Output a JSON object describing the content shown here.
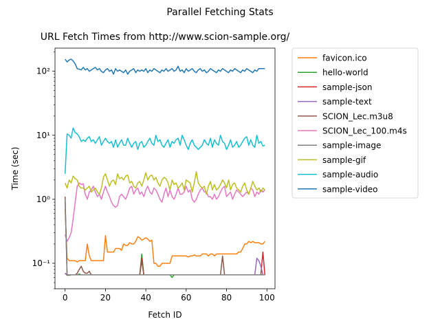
{
  "suptitle": "Parallel Fetching Stats",
  "chart_data": {
    "type": "line",
    "title": "URL Fetch Times from http://www.scion-sample.org/",
    "xlabel": "Fetch ID",
    "ylabel": "Time (sec)",
    "yscale": "log",
    "xlim": [
      -5,
      104
    ],
    "ylim": [
      0.04,
      230
    ],
    "xticks": [
      0,
      20,
      40,
      60,
      80,
      100
    ],
    "xtick_labels": [
      "0",
      "20",
      "40",
      "60",
      "80",
      "100"
    ],
    "yticks": [
      0.1,
      1,
      10,
      100
    ],
    "ytick_labels": [
      "10⁻¹",
      "10⁰",
      "10¹",
      "10²"
    ],
    "grid": false,
    "legend_position": "outside-right",
    "x": [
      0,
      1,
      2,
      3,
      4,
      5,
      6,
      7,
      8,
      9,
      10,
      11,
      12,
      13,
      14,
      15,
      16,
      17,
      18,
      19,
      20,
      21,
      22,
      23,
      24,
      25,
      26,
      27,
      28,
      29,
      30,
      31,
      32,
      33,
      34,
      35,
      36,
      37,
      38,
      39,
      40,
      41,
      42,
      43,
      44,
      45,
      46,
      47,
      48,
      49,
      50,
      51,
      52,
      53,
      54,
      55,
      56,
      57,
      58,
      59,
      60,
      61,
      62,
      63,
      64,
      65,
      66,
      67,
      68,
      69,
      70,
      71,
      72,
      73,
      74,
      75,
      76,
      77,
      78,
      79,
      80,
      81,
      82,
      83,
      84,
      85,
      86,
      87,
      88,
      89,
      90,
      91,
      92,
      93,
      94,
      95,
      96,
      97,
      98,
      99
    ],
    "series": [
      {
        "name": "favicon.ico",
        "color": "#ff7f0e",
        "values": [
          0.7,
          0.12,
          0.11,
          0.11,
          0.11,
          0.11,
          0.105,
          0.11,
          0.11,
          0.11,
          0.11,
          0.2,
          0.13,
          0.11,
          0.11,
          0.11,
          0.11,
          0.11,
          0.11,
          0.11,
          0.27,
          0.15,
          0.15,
          0.15,
          0.15,
          0.17,
          0.17,
          0.17,
          0.16,
          0.2,
          0.19,
          0.19,
          0.21,
          0.2,
          0.2,
          0.22,
          0.26,
          0.25,
          0.23,
          0.24,
          0.25,
          0.24,
          0.22,
          0.23,
          0.1,
          0.1,
          0.09,
          0.09,
          0.1,
          0.1,
          0.1,
          0.1,
          0.1,
          0.13,
          0.13,
          0.13,
          0.13,
          0.13,
          0.13,
          0.13,
          0.13,
          0.125,
          0.13,
          0.13,
          0.135,
          0.13,
          0.13,
          0.13,
          0.14,
          0.14,
          0.14,
          0.13,
          0.14,
          0.14,
          0.13,
          0.14,
          0.14,
          0.14,
          0.14,
          0.14,
          0.14,
          0.14,
          0.14,
          0.14,
          0.14,
          0.14,
          0.15,
          0.15,
          0.17,
          0.2,
          0.2,
          0.22,
          0.21,
          0.22,
          0.21,
          0.21,
          0.21,
          0.2,
          0.2,
          0.22
        ]
      },
      {
        "name": "hello-world",
        "color": "#2ca02c",
        "values": [
          0.07,
          0.065,
          0.065,
          0.066,
          0.066,
          0.066,
          0.066,
          0.068,
          0.066,
          0.066,
          0.066,
          0.066,
          0.066,
          0.066,
          0.066,
          0.066,
          0.066,
          0.066,
          0.066,
          0.066,
          0.066,
          0.066,
          0.066,
          0.066,
          0.066,
          0.066,
          0.066,
          0.066,
          0.066,
          0.066,
          0.066,
          0.066,
          0.066,
          0.066,
          0.066,
          0.066,
          0.066,
          0.066,
          0.14,
          0.066,
          0.066,
          0.066,
          0.066,
          0.066,
          0.066,
          0.066,
          0.066,
          0.066,
          0.066,
          0.066,
          0.066,
          0.066,
          0.066,
          0.06,
          0.066,
          0.066,
          0.066,
          0.066,
          0.066,
          0.066,
          0.066,
          0.066,
          0.066,
          0.066,
          0.066,
          0.066,
          0.066,
          0.066,
          0.066,
          0.066,
          0.066,
          0.066,
          0.066,
          0.066,
          0.066,
          0.066,
          0.066,
          0.066,
          0.066,
          0.066,
          0.066,
          0.066,
          0.066,
          0.066,
          0.066,
          0.066,
          0.066,
          0.066,
          0.066,
          0.066,
          0.066,
          0.066,
          0.066,
          0.066,
          0.066,
          0.066,
          0.066,
          0.066,
          0.066,
          0.066
        ]
      },
      {
        "name": "sample-json",
        "color": "#d62728",
        "values": [
          0.07,
          0.065,
          0.066,
          0.066,
          0.066,
          0.066,
          0.066,
          0.066,
          0.066,
          0.066,
          0.066,
          0.066,
          0.066,
          0.066,
          0.066,
          0.066,
          0.066,
          0.066,
          0.066,
          0.066,
          0.066,
          0.066,
          0.066,
          0.066,
          0.066,
          0.066,
          0.066,
          0.066,
          0.066,
          0.066,
          0.066,
          0.066,
          0.066,
          0.066,
          0.066,
          0.066,
          0.066,
          0.066,
          0.12,
          0.066,
          0.066,
          0.066,
          0.066,
          0.066,
          0.066,
          0.066,
          0.066,
          0.066,
          0.066,
          0.066,
          0.066,
          0.066,
          0.066,
          0.066,
          0.066,
          0.066,
          0.066,
          0.066,
          0.066,
          0.066,
          0.066,
          0.066,
          0.066,
          0.066,
          0.066,
          0.066,
          0.066,
          0.066,
          0.066,
          0.066,
          0.066,
          0.066,
          0.066,
          0.066,
          0.066,
          0.066,
          0.066,
          0.066,
          0.066,
          0.066,
          0.066,
          0.066,
          0.066,
          0.066,
          0.066,
          0.066,
          0.066,
          0.066,
          0.066,
          0.066,
          0.066,
          0.066,
          0.066,
          0.066,
          0.066,
          0.066,
          0.066,
          0.066,
          0.15,
          0.066
        ]
      },
      {
        "name": "sample-text",
        "color": "#9467bd",
        "values": [
          0.07,
          0.065,
          0.066,
          0.066,
          0.066,
          0.066,
          0.066,
          0.066,
          0.066,
          0.066,
          0.066,
          0.066,
          0.066,
          0.066,
          0.066,
          0.066,
          0.066,
          0.066,
          0.066,
          0.066,
          0.066,
          0.066,
          0.066,
          0.066,
          0.066,
          0.066,
          0.066,
          0.066,
          0.066,
          0.066,
          0.066,
          0.066,
          0.066,
          0.066,
          0.066,
          0.066,
          0.066,
          0.066,
          0.066,
          0.066,
          0.066,
          0.066,
          0.066,
          0.066,
          0.066,
          0.066,
          0.066,
          0.066,
          0.066,
          0.066,
          0.066,
          0.066,
          0.066,
          0.066,
          0.066,
          0.066,
          0.066,
          0.066,
          0.066,
          0.066,
          0.066,
          0.066,
          0.066,
          0.066,
          0.066,
          0.066,
          0.066,
          0.066,
          0.066,
          0.066,
          0.066,
          0.066,
          0.066,
          0.066,
          0.066,
          0.066,
          0.066,
          0.066,
          0.066,
          0.066,
          0.066,
          0.066,
          0.066,
          0.066,
          0.066,
          0.066,
          0.066,
          0.066,
          0.066,
          0.066,
          0.066,
          0.066,
          0.066,
          0.066,
          0.066,
          0.12,
          0.11,
          0.09,
          0.066,
          0.066
        ]
      },
      {
        "name": "SCION_Lec.m3u8",
        "color": "#8c564b",
        "values": [
          1.1,
          0.065,
          0.066,
          0.066,
          0.066,
          0.066,
          0.07,
          0.08,
          0.09,
          0.075,
          0.07,
          0.07,
          0.075,
          0.066,
          0.066,
          0.066,
          0.066,
          0.066,
          0.066,
          0.066,
          0.066,
          0.066,
          0.066,
          0.066,
          0.066,
          0.066,
          0.066,
          0.066,
          0.066,
          0.066,
          0.066,
          0.066,
          0.066,
          0.066,
          0.066,
          0.066,
          0.066,
          0.066,
          0.11,
          0.066,
          0.066,
          0.066,
          0.066,
          0.066,
          0.066,
          0.066,
          0.066,
          0.066,
          0.066,
          0.066,
          0.066,
          0.066,
          0.066,
          0.066,
          0.066,
          0.066,
          0.066,
          0.066,
          0.066,
          0.066,
          0.066,
          0.066,
          0.066,
          0.066,
          0.066,
          0.066,
          0.066,
          0.066,
          0.066,
          0.066,
          0.066,
          0.066,
          0.066,
          0.066,
          0.066,
          0.066,
          0.066,
          0.066,
          0.13,
          0.066,
          0.066,
          0.066,
          0.066,
          0.066,
          0.066,
          0.066,
          0.066,
          0.066,
          0.066,
          0.066,
          0.066,
          0.066,
          0.066,
          0.066,
          0.066,
          0.066,
          0.066,
          0.066,
          0.066,
          0.066
        ]
      },
      {
        "name": "SCION_Lec_100.m4s",
        "color": "#e377c2",
        "values": [
          0.28,
          0.22,
          0.25,
          0.3,
          0.5,
          0.9,
          1.6,
          1.8,
          1.7,
          1.75,
          1.2,
          1.0,
          1.3,
          1.4,
          1.6,
          1.3,
          1.1,
          1.2,
          1.0,
          1.3,
          1.6,
          1.3,
          1.1,
          0.9,
          0.8,
          0.75,
          0.8,
          1.1,
          1.2,
          1.1,
          1.0,
          1.2,
          1.5,
          1.6,
          1.2,
          1.4,
          1.5,
          1.2,
          1.3,
          1.1,
          1.4,
          1.6,
          1.3,
          1.2,
          1.5,
          1.4,
          1.2,
          1.0,
          0.9,
          1.2,
          1.5,
          1.1,
          1.4,
          1.1,
          1.0,
          1.2,
          1.5,
          1.2,
          1.2,
          1.3,
          1.6,
          1.3,
          1.4,
          1.0,
          0.9,
          1.0,
          1.2,
          1.4,
          1.5,
          1.3,
          1.3,
          1.1,
          1.1,
          1.0,
          1.2,
          1.0,
          1.1,
          1.3,
          1.5,
          1.6,
          1.1,
          1.2,
          1.3,
          1.0,
          1.2,
          1.4,
          1.3,
          1.2,
          1.1,
          1.2,
          1.3,
          1.2,
          1.5,
          1.4,
          1.1,
          1.3,
          1.2,
          1.4,
          1.3,
          1.4
        ]
      },
      {
        "name": "sample-image",
        "color": "#7f7f7f",
        "values": [
          1.0,
          0.065,
          0.066,
          0.066,
          0.066,
          0.066,
          0.066,
          0.066,
          0.066,
          0.066,
          0.066,
          0.066,
          0.066,
          0.066,
          0.066,
          0.066,
          0.066,
          0.066,
          0.066,
          0.066,
          0.066,
          0.066,
          0.066,
          0.066,
          0.066,
          0.066,
          0.066,
          0.066,
          0.066,
          0.066,
          0.066,
          0.066,
          0.066,
          0.066,
          0.066,
          0.066,
          0.066,
          0.066,
          0.066,
          0.066,
          0.066,
          0.066,
          0.066,
          0.066,
          0.066,
          0.066,
          0.066,
          0.066,
          0.066,
          0.066,
          0.066,
          0.066,
          0.066,
          0.066,
          0.066,
          0.066,
          0.066,
          0.066,
          0.066,
          0.066,
          0.066,
          0.066,
          0.066,
          0.066,
          0.066,
          0.066,
          0.066,
          0.066,
          0.066,
          0.066,
          0.066,
          0.066,
          0.066,
          0.066,
          0.066,
          0.066,
          0.066,
          0.066,
          0.066,
          0.066,
          0.066,
          0.066,
          0.066,
          0.066,
          0.066,
          0.066,
          0.066,
          0.066,
          0.066,
          0.066,
          0.066,
          0.066,
          0.066,
          0.066,
          0.066,
          0.066,
          0.066,
          0.066,
          0.066,
          0.066
        ]
      },
      {
        "name": "sample-gif",
        "color": "#bcbd22",
        "values": [
          1.8,
          1.5,
          2.0,
          1.8,
          2.3,
          2.1,
          2.0,
          1.6,
          1.5,
          1.5,
          1.4,
          1.5,
          1.6,
          1.3,
          1.4,
          1.5,
          1.3,
          1.2,
          1.5,
          2.2,
          2.5,
          2.0,
          1.6,
          1.9,
          2.0,
          1.7,
          2.5,
          2.1,
          2.2,
          2.0,
          2.3,
          2.4,
          1.8,
          1.9,
          1.6,
          1.5,
          1.8,
          1.9,
          1.6,
          2.0,
          2.6,
          2.0,
          2.3,
          2.4,
          2.0,
          2.2,
          1.8,
          1.6,
          2.0,
          2.2,
          2.1,
          1.8,
          1.4,
          2.0,
          1.7,
          1.8,
          1.5,
          1.6,
          1.8,
          1.4,
          2.0,
          1.9,
          1.8,
          1.3,
          1.8,
          2.7,
          1.8,
          1.6,
          1.5,
          1.6,
          1.2,
          1.6,
          1.9,
          1.4,
          1.7,
          1.4,
          1.5,
          1.7,
          2.0,
          1.8,
          1.5,
          2.0,
          1.4,
          1.7,
          1.8,
          1.5,
          1.4,
          1.3,
          1.6,
          1.8,
          1.4,
          1.2,
          1.5,
          1.9,
          1.6,
          1.4,
          1.5,
          1.3,
          1.5,
          1.4
        ]
      },
      {
        "name": "sample-audio",
        "color": "#17becf",
        "values": [
          2.5,
          10.5,
          10.0,
          9.0,
          13.0,
          11.0,
          10.5,
          9.5,
          8.0,
          8.5,
          8.0,
          9.0,
          9.5,
          8.0,
          8.5,
          7.5,
          8.5,
          9.5,
          7.0,
          8.0,
          9.0,
          8.0,
          7.5,
          8.0,
          6.5,
          8.5,
          6.5,
          7.5,
          8.5,
          7.0,
          7.0,
          9.0,
          7.5,
          6.5,
          7.5,
          8.0,
          6.0,
          7.5,
          8.0,
          6.5,
          7.0,
          8.0,
          9.0,
          7.5,
          7.0,
          10.0,
          8.0,
          8.5,
          7.0,
          6.5,
          7.5,
          8.5,
          6.5,
          8.0,
          7.5,
          8.5,
          9.0,
          7.0,
          10.0,
          8.5,
          7.0,
          6.0,
          7.5,
          8.5,
          7.0,
          6.5,
          6.0,
          6.5,
          7.0,
          8.5,
          7.5,
          7.0,
          9.0,
          6.5,
          8.5,
          7.5,
          7.0,
          10.0,
          8.0,
          7.5,
          6.0,
          7.0,
          8.5,
          6.5,
          7.0,
          8.0,
          6.5,
          7.0,
          8.0,
          9.0,
          9.5,
          7.0,
          8.5,
          7.0,
          6.5,
          10.0,
          7.5,
          8.0,
          6.8,
          7.0
        ]
      },
      {
        "name": "sample-video",
        "color": "#1f77b4",
        "values": [
          155,
          140,
          150,
          155,
          145,
          130,
          110,
          108,
          105,
          115,
          105,
          110,
          100,
          105,
          110,
          115,
          105,
          110,
          100,
          95,
          105,
          110,
          100,
          105,
          90,
          110,
          100,
          105,
          100,
          95,
          105,
          90,
          100,
          105,
          110,
          95,
          105,
          100,
          105,
          100,
          110,
          95,
          105,
          100,
          110,
          105,
          100,
          95,
          105,
          100,
          110,
          100,
          105,
          110,
          100,
          105,
          120,
          100,
          105,
          95,
          110,
          100,
          105,
          110,
          100,
          95,
          105,
          110,
          100,
          105,
          95,
          100,
          110,
          105,
          100,
          95,
          105,
          100,
          110,
          105,
          100,
          95,
          105,
          100,
          110,
          105,
          100,
          95,
          105,
          100,
          110,
          105,
          100,
          95,
          105,
          100,
          110,
          110,
          110,
          110
        ]
      }
    ]
  }
}
